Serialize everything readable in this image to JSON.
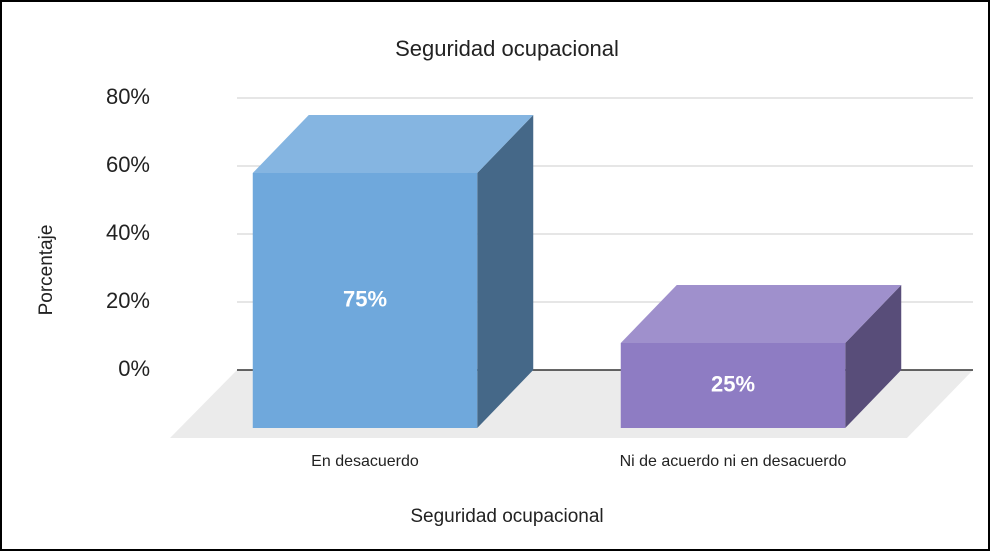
{
  "chart_data": {
    "type": "bar3d",
    "title": "Seguridad ocupacional",
    "x_label": "Seguridad ocupacional",
    "y_label": "Porcentaje",
    "categories": [
      "En desacuerdo",
      "Ni de acuerdo ni en desacuerdo"
    ],
    "values": [
      75,
      25
    ],
    "value_labels": [
      "75%",
      "25%"
    ],
    "colors": [
      "#6fa8dc",
      "#8e7cc3"
    ],
    "ylim": [
      0,
      80
    ],
    "yticks": [
      {
        "value": 0,
        "label": "0%"
      },
      {
        "value": 20,
        "label": "20%"
      },
      {
        "value": 40,
        "label": "40%"
      },
      {
        "value": 60,
        "label": "60%"
      },
      {
        "value": 80,
        "label": "80%"
      }
    ],
    "grid": true
  }
}
